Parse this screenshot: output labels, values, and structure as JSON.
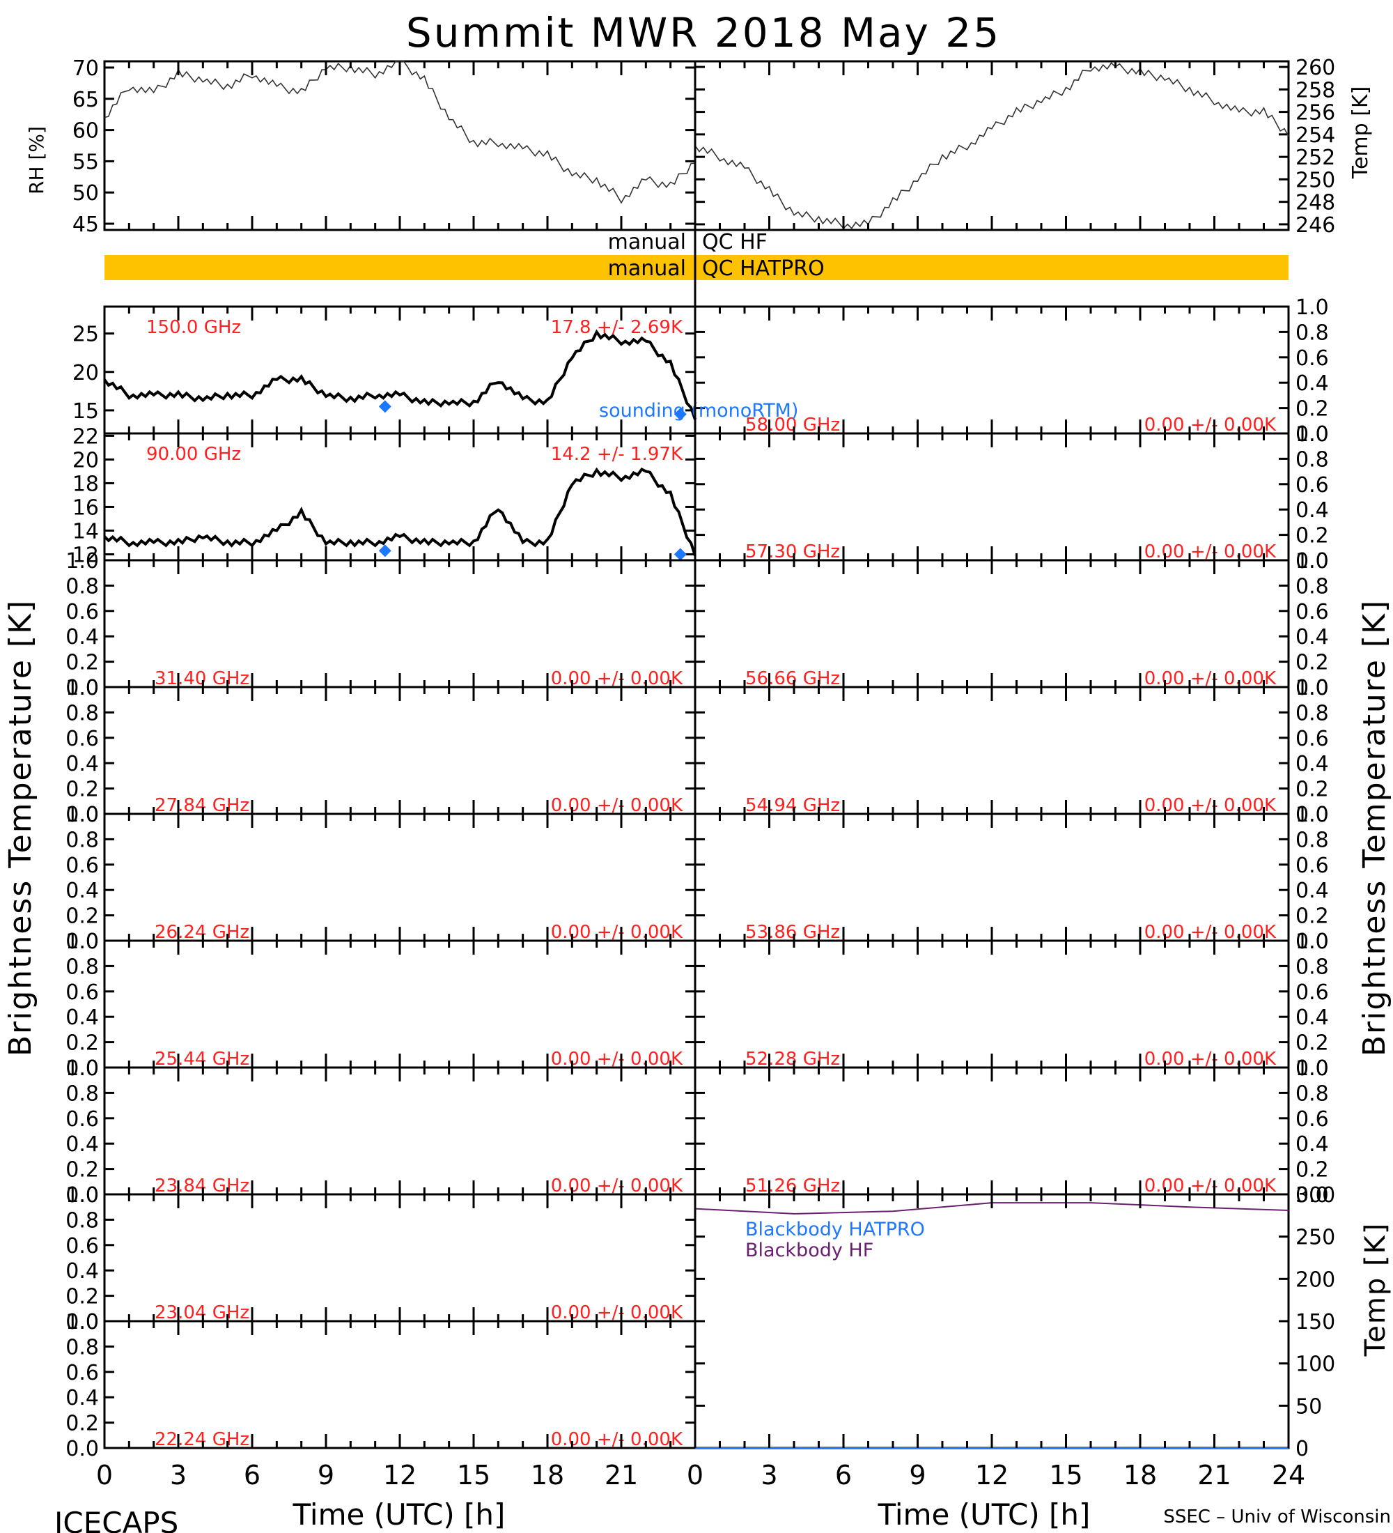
{
  "title": "Summit MWR 2018 May 25",
  "footer": {
    "left": "ICECAPS",
    "right": "SSEC – Univ of Wisconsin",
    "xlabel_left": "Time (UTC) [h]",
    "xlabel_right": "Time (UTC) [h]"
  },
  "axis_titles": {
    "rh": "RH [%]",
    "temp": "Temp [K]",
    "tb_left": "Brightness Temperature [K]",
    "tb_right": "Brightness Temperature [K]",
    "bb_temp": "Temp [K]"
  },
  "qc": {
    "hf_label_left": "manual",
    "hf_label_right": "QC HF",
    "hatpro_label_left": "manual",
    "hatpro_label_right": "QC HATPRO",
    "hatpro_color": "#FFC200"
  },
  "colors": {
    "annotation": "#FF2020",
    "sounding": "#1E78FF",
    "blackbody_hatpro": "#1E78FF",
    "blackbody_hf": "#6A2070",
    "trace": "#000000"
  },
  "chart_data": [
    {
      "id": "rh",
      "type": "line",
      "ylabel": "RH [%]",
      "xlim": [
        0,
        12
      ],
      "ylim": [
        44,
        71
      ],
      "yticks": [
        "45",
        "50",
        "55",
        "60",
        "65",
        "70"
      ],
      "ytick_values": [
        45,
        50,
        55,
        60,
        65,
        70
      ],
      "x": [
        0,
        0.5,
        1,
        1.5,
        2,
        2.5,
        3,
        3.5,
        4,
        4.5,
        5,
        5.5,
        6,
        6.5,
        7,
        7.5,
        8,
        8.5,
        9,
        9.5,
        10,
        10.5,
        11,
        11.5,
        12
      ],
      "y": [
        62,
        67,
        66,
        69,
        68,
        67,
        69,
        67,
        66,
        70,
        70,
        69,
        71,
        68,
        62,
        58,
        58,
        57,
        56,
        53,
        52,
        49,
        52,
        51,
        55
      ]
    },
    {
      "id": "temp",
      "type": "line",
      "ylabel": "Temp [K]",
      "xlim": [
        12,
        24
      ],
      "ylim": [
        245.5,
        260.5
      ],
      "yticks": [
        "246",
        "248",
        "250",
        "252",
        "254",
        "256",
        "258",
        "260"
      ],
      "ytick_values": [
        246,
        248,
        250,
        252,
        254,
        256,
        258,
        260
      ],
      "x": [
        12,
        12.5,
        13,
        13.5,
        14,
        14.5,
        15,
        15.5,
        16,
        16.5,
        17,
        17.5,
        18,
        18.5,
        19,
        19.5,
        20,
        20.5,
        21,
        21.5,
        22,
        22.5,
        23,
        23.5,
        24
      ],
      "y": [
        253,
        252,
        251,
        249,
        247,
        246.5,
        246,
        246,
        248,
        250,
        252,
        253,
        254.5,
        256,
        257,
        258,
        260,
        260,
        259.5,
        259,
        258,
        257,
        256,
        256,
        254
      ]
    },
    {
      "id": "tb-150",
      "type": "line",
      "label": "150.0 GHz",
      "stats": "17.8 +/- 2.69K",
      "xlim": [
        0,
        12
      ],
      "ylim": [
        12,
        28.5
      ],
      "yticks": [
        "15",
        "20",
        "25"
      ],
      "ytick_values": [
        15,
        20,
        25
      ],
      "x": [
        0,
        0.5,
        1,
        1.5,
        2,
        2.5,
        3,
        3.5,
        4,
        4.5,
        5,
        5.5,
        6,
        6.5,
        7,
        7.5,
        8,
        8.5,
        9,
        9.5,
        10,
        10.5,
        11,
        11.5,
        12
      ],
      "y": [
        19,
        17,
        17,
        17,
        16.5,
        17,
        17,
        19,
        19,
        17,
        16.5,
        17,
        17,
        16,
        16,
        16,
        19,
        16.5,
        16,
        22,
        25,
        24,
        24,
        21,
        14
      ],
      "sounding": {
        "label": "sounding (monoRTM)",
        "x": [
          5.7,
          11.7
        ],
        "y": [
          15.5,
          14.5
        ]
      }
    },
    {
      "id": "tb-90",
      "type": "line",
      "label": "90.00 GHz",
      "stats": "14.2 +/- 1.97K",
      "xlim": [
        0,
        12
      ],
      "ylim": [
        11.5,
        22.2
      ],
      "yticks": [
        "12",
        "14",
        "16",
        "18",
        "20",
        "22"
      ],
      "ytick_values": [
        12,
        14,
        16,
        18,
        20,
        22
      ],
      "x": [
        0,
        0.5,
        1,
        1.5,
        2,
        2.5,
        3,
        3.5,
        4,
        4.5,
        5,
        5.5,
        6,
        6.5,
        7,
        7.5,
        8,
        8.5,
        9,
        9.5,
        10,
        10.5,
        11,
        11.5,
        12
      ],
      "y": [
        13.5,
        13,
        13,
        13,
        13.5,
        13,
        13,
        14,
        15.5,
        13,
        13,
        13,
        13.5,
        13,
        13,
        13,
        16,
        13,
        13,
        18,
        19,
        18.5,
        19,
        17,
        12
      ],
      "sounding": {
        "x": [
          5.7,
          11.7
        ],
        "y": [
          12.3,
          12.0
        ]
      }
    },
    {
      "id": "tb-58.00",
      "type": "line",
      "label": "58.00 GHz",
      "stats": "0.00 +/- 0.00K",
      "xlim": [
        12,
        24
      ],
      "ylim": [
        0,
        1
      ],
      "yticks": [
        "0.0",
        "0.2",
        "0.4",
        "0.6",
        "0.8",
        "1.0"
      ],
      "ytick_values": [
        0,
        0.2,
        0.4,
        0.6,
        0.8,
        1.0
      ],
      "x": [],
      "y": []
    },
    {
      "id": "tb-57.30",
      "type": "line",
      "label": "57.30 GHz",
      "stats": "0.00 +/- 0.00K",
      "xlim": [
        12,
        24
      ],
      "ylim": [
        0,
        1
      ],
      "yticks": [
        "0.0",
        "0.2",
        "0.4",
        "0.6",
        "0.8",
        "1.0"
      ],
      "ytick_values": [
        0,
        0.2,
        0.4,
        0.6,
        0.8,
        1.0
      ],
      "x": [],
      "y": []
    },
    {
      "id": "tb-31.40",
      "type": "line",
      "label": "31.40 GHz",
      "stats": "0.00 +/- 0.00K",
      "xlim": [
        0,
        12
      ],
      "ylim": [
        0,
        1
      ],
      "yticks": [
        "0.0",
        "0.2",
        "0.4",
        "0.6",
        "0.8",
        "1.0"
      ],
      "ytick_values": [
        0,
        0.2,
        0.4,
        0.6,
        0.8,
        1.0
      ],
      "x": [],
      "y": []
    },
    {
      "id": "tb-56.66",
      "type": "line",
      "label": "56.66 GHz",
      "stats": "0.00 +/- 0.00K",
      "xlim": [
        12,
        24
      ],
      "ylim": [
        0,
        1
      ],
      "yticks": [
        "0.0",
        "0.2",
        "0.4",
        "0.6",
        "0.8",
        "1.0"
      ],
      "ytick_values": [
        0,
        0.2,
        0.4,
        0.6,
        0.8,
        1.0
      ],
      "x": [],
      "y": []
    },
    {
      "id": "tb-27.84",
      "type": "line",
      "label": "27.84 GHz",
      "stats": "0.00 +/- 0.00K",
      "xlim": [
        0,
        12
      ],
      "ylim": [
        0,
        1
      ],
      "yticks": [
        "0.0",
        "0.2",
        "0.4",
        "0.6",
        "0.8",
        "1.0"
      ],
      "ytick_values": [
        0,
        0.2,
        0.4,
        0.6,
        0.8,
        1.0
      ],
      "x": [],
      "y": []
    },
    {
      "id": "tb-54.94",
      "type": "line",
      "label": "54.94 GHz",
      "stats": "0.00 +/- 0.00K",
      "xlim": [
        12,
        24
      ],
      "ylim": [
        0,
        1
      ],
      "yticks": [
        "0.0",
        "0.2",
        "0.4",
        "0.6",
        "0.8",
        "1.0"
      ],
      "ytick_values": [
        0,
        0.2,
        0.4,
        0.6,
        0.8,
        1.0
      ],
      "x": [],
      "y": []
    },
    {
      "id": "tb-26.24",
      "type": "line",
      "label": "26.24 GHz",
      "stats": "0.00 +/- 0.00K",
      "xlim": [
        0,
        12
      ],
      "ylim": [
        0,
        1
      ],
      "yticks": [
        "0.0",
        "0.2",
        "0.4",
        "0.6",
        "0.8",
        "1.0"
      ],
      "ytick_values": [
        0,
        0.2,
        0.4,
        0.6,
        0.8,
        1.0
      ],
      "x": [],
      "y": []
    },
    {
      "id": "tb-53.86",
      "type": "line",
      "label": "53.86 GHz",
      "stats": "0.00 +/- 0.00K",
      "xlim": [
        12,
        24
      ],
      "ylim": [
        0,
        1
      ],
      "yticks": [
        "0.0",
        "0.2",
        "0.4",
        "0.6",
        "0.8",
        "1.0"
      ],
      "ytick_values": [
        0,
        0.2,
        0.4,
        0.6,
        0.8,
        1.0
      ],
      "x": [],
      "y": []
    },
    {
      "id": "tb-25.44",
      "type": "line",
      "label": "25.44 GHz",
      "stats": "0.00 +/- 0.00K",
      "xlim": [
        0,
        12
      ],
      "ylim": [
        0,
        1
      ],
      "yticks": [
        "0.0",
        "0.2",
        "0.4",
        "0.6",
        "0.8",
        "1.0"
      ],
      "ytick_values": [
        0,
        0.2,
        0.4,
        0.6,
        0.8,
        1.0
      ],
      "x": [],
      "y": []
    },
    {
      "id": "tb-52.28",
      "type": "line",
      "label": "52.28 GHz",
      "stats": "0.00 +/- 0.00K",
      "xlim": [
        12,
        24
      ],
      "ylim": [
        0,
        1
      ],
      "yticks": [
        "0.0",
        "0.2",
        "0.4",
        "0.6",
        "0.8",
        "1.0"
      ],
      "ytick_values": [
        0,
        0.2,
        0.4,
        0.6,
        0.8,
        1.0
      ],
      "x": [],
      "y": []
    },
    {
      "id": "tb-23.84",
      "type": "line",
      "label": "23.84 GHz",
      "stats": "0.00 +/- 0.00K",
      "xlim": [
        0,
        12
      ],
      "ylim": [
        0,
        1
      ],
      "yticks": [
        "0.0",
        "0.2",
        "0.4",
        "0.6",
        "0.8",
        "1.0"
      ],
      "ytick_values": [
        0,
        0.2,
        0.4,
        0.6,
        0.8,
        1.0
      ],
      "x": [],
      "y": []
    },
    {
      "id": "tb-51.26",
      "type": "line",
      "label": "51.26 GHz",
      "stats": "0.00 +/- 0.00K",
      "xlim": [
        12,
        24
      ],
      "ylim": [
        0,
        1
      ],
      "yticks": [
        "0.0",
        "0.2",
        "0.4",
        "0.6",
        "0.8",
        "1.0"
      ],
      "ytick_values": [
        0,
        0.2,
        0.4,
        0.6,
        0.8,
        1.0
      ],
      "x": [],
      "y": []
    },
    {
      "id": "tb-23.04",
      "type": "line",
      "label": "23.04 GHz",
      "stats": "0.00 +/- 0.00K",
      "xlim": [
        0,
        12
      ],
      "ylim": [
        0,
        1
      ],
      "yticks": [
        "0.0",
        "0.2",
        "0.4",
        "0.6",
        "0.8",
        "1.0"
      ],
      "ytick_values": [
        0,
        0.2,
        0.4,
        0.6,
        0.8,
        1.0
      ],
      "x": [],
      "y": []
    },
    {
      "id": "tb-22.24",
      "type": "line",
      "label": "22.24 GHz",
      "stats": "0.00 +/- 0.00K",
      "xlim": [
        0,
        12
      ],
      "ylim": [
        0,
        1
      ],
      "yticks": [
        "0.0",
        "0.2",
        "0.4",
        "0.6",
        "0.8",
        "1.0"
      ],
      "ytick_values": [
        0,
        0.2,
        0.4,
        0.6,
        0.8,
        1.0
      ],
      "x": [],
      "y": []
    },
    {
      "id": "blackbody",
      "type": "line",
      "ylabel": "Temp [K]",
      "xlim": [
        12,
        24
      ],
      "ylim": [
        0,
        300
      ],
      "yticks": [
        "0",
        "50",
        "100",
        "150",
        "200",
        "250",
        "300"
      ],
      "ytick_values": [
        0,
        50,
        100,
        150,
        200,
        250,
        300
      ],
      "series": [
        {
          "name": "Blackbody HATPRO",
          "x": [
            12,
            24
          ],
          "y": [
            0,
            0
          ]
        },
        {
          "name": "Blackbody HF",
          "x": [
            12,
            14,
            16,
            18,
            20,
            22,
            24
          ],
          "y": [
            283,
            277,
            280,
            290,
            290,
            285,
            281
          ]
        }
      ]
    }
  ],
  "xticks_left": [
    "0",
    "3",
    "6",
    "9",
    "12",
    "15",
    "18",
    "21"
  ],
  "xtick_values_left": [
    0,
    3,
    6,
    9,
    12,
    15,
    18,
    21
  ],
  "xticks_right": [
    "0",
    "3",
    "6",
    "9",
    "12",
    "15",
    "18",
    "21",
    "24"
  ],
  "xtick_values_right": [
    0,
    3,
    6,
    9,
    12,
    15,
    18,
    21,
    24
  ]
}
